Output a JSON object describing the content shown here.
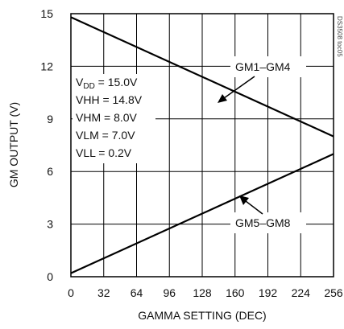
{
  "chart_data": {
    "type": "line",
    "xlabel": "GAMMA SETTING (DEC)",
    "ylabel": "GM OUTPUT (V)",
    "xlim": [
      0,
      256
    ],
    "ylim": [
      0,
      15
    ],
    "x_ticks": [
      0,
      32,
      64,
      96,
      128,
      160,
      192,
      224,
      256
    ],
    "y_ticks": [
      0,
      3,
      6,
      9,
      12,
      15
    ],
    "grid": true,
    "series": [
      {
        "name": "GM1–GM4",
        "x": [
          0,
          256
        ],
        "y": [
          14.8,
          8.0
        ],
        "color": "#000000"
      },
      {
        "name": "GM5–GM8",
        "x": [
          0,
          256
        ],
        "y": [
          0.2,
          7.0
        ],
        "color": "#000000"
      }
    ],
    "annotations": {
      "conditions": {
        "vdd_main": "V",
        "vdd_sub": "DD",
        "vdd_rest": " = 15.0V",
        "vhh": "VHH = 14.8V",
        "vhm": "VHM = 8.0V",
        "vlm": "VLM = 7.0V",
        "vll": "VLL = 0.2V"
      },
      "figure_id": "DS3508 toc05"
    }
  }
}
